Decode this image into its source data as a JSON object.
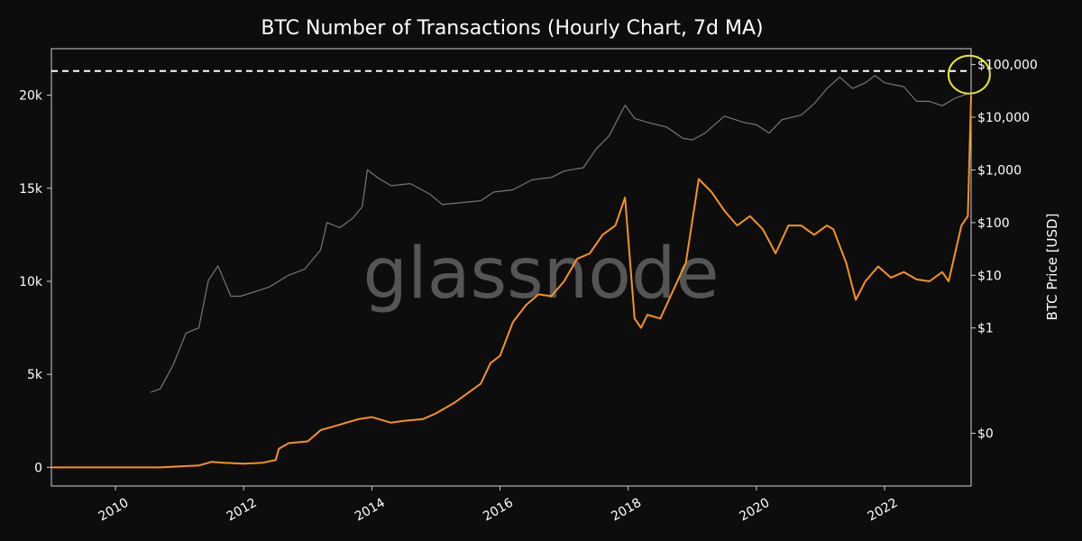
{
  "chart_data": {
    "type": "line",
    "title": "BTC Number of Transactions (Hourly Chart, 7d MA)",
    "xlabel": "",
    "ylabel": "",
    "y2label": "BTC Price [USD]",
    "watermark": "glassnode",
    "xlim": [
      2009.0,
      2023.35
    ],
    "ylim": [
      -1000,
      22500
    ],
    "y2lim_log": [
      0.001,
      200000
    ],
    "x_ticks": [
      "2010",
      "2012",
      "2014",
      "2016",
      "2018",
      "2020",
      "2022"
    ],
    "y_ticks": [
      "0",
      "5k",
      "10k",
      "15k",
      "20k"
    ],
    "y2_ticks": [
      "$0",
      "$1",
      "$10",
      "$100",
      "$1,000",
      "$10,000",
      "$100,000"
    ],
    "grid": false,
    "series": [
      {
        "axis": "left",
        "color": "#f7931a",
        "x": [
          2009.0,
          2010.7,
          2011.0,
          2011.3,
          2011.5,
          2011.7,
          2012.0,
          2012.3,
          2012.5,
          2012.55,
          2012.7,
          2013.0,
          2013.2,
          2013.5,
          2013.8,
          2014.0,
          2014.3,
          2014.5,
          2014.8,
          2015.0,
          2015.3,
          2015.5,
          2015.7,
          2015.85,
          2016.0,
          2016.2,
          2016.4,
          2016.6,
          2016.8,
          2017.0,
          2017.2,
          2017.4,
          2017.6,
          2017.8,
          2017.95,
          2018.1,
          2018.2,
          2018.3,
          2018.5,
          2018.7,
          2018.9,
          2019.1,
          2019.3,
          2019.5,
          2019.7,
          2019.9,
          2020.1,
          2020.3,
          2020.5,
          2020.7,
          2020.9,
          2021.1,
          2021.2,
          2021.4,
          2021.55,
          2021.7,
          2021.9,
          2022.1,
          2022.3,
          2022.5,
          2022.7,
          2022.9,
          2023.0,
          2023.1,
          2023.2,
          2023.3,
          2023.35
        ],
        "y": [
          0,
          0,
          50,
          100,
          300,
          250,
          200,
          250,
          400,
          1000,
          1300,
          1400,
          2000,
          2300,
          2600,
          2700,
          2400,
          2500,
          2600,
          2900,
          3500,
          4000,
          4500,
          5600,
          6000,
          7800,
          8700,
          9300,
          9200,
          10000,
          11200,
          11500,
          12500,
          13000,
          14500,
          8000,
          7500,
          8200,
          8000,
          9500,
          11000,
          15500,
          14800,
          13800,
          13000,
          13500,
          12800,
          11500,
          13000,
          13000,
          12500,
          13000,
          12800,
          11000,
          9000,
          10000,
          10800,
          10200,
          10500,
          10100,
          10000,
          10500,
          10000,
          11500,
          13000,
          13500,
          20000
        ]
      },
      {
        "axis": "right",
        "color": "#777777",
        "x": [
          2010.55,
          2010.7,
          2010.9,
          2011.1,
          2011.3,
          2011.45,
          2011.6,
          2011.8,
          2011.95,
          2012.2,
          2012.4,
          2012.7,
          2012.95,
          2013.2,
          2013.3,
          2013.5,
          2013.7,
          2013.85,
          2013.93,
          2014.1,
          2014.3,
          2014.6,
          2014.9,
          2015.1,
          2015.4,
          2015.7,
          2015.9,
          2016.2,
          2016.5,
          2016.8,
          2017.0,
          2017.3,
          2017.5,
          2017.7,
          2017.95,
          2018.1,
          2018.3,
          2018.6,
          2018.85,
          2019.0,
          2019.2,
          2019.5,
          2019.8,
          2020.0,
          2020.2,
          2020.4,
          2020.7,
          2020.9,
          2021.1,
          2021.3,
          2021.5,
          2021.7,
          2021.85,
          2022.0,
          2022.3,
          2022.5,
          2022.7,
          2022.9,
          2023.1,
          2023.3
        ],
        "y": [
          0.06,
          0.07,
          0.2,
          0.8,
          1,
          8,
          15,
          4,
          4,
          5,
          6,
          10,
          13,
          30,
          100,
          80,
          120,
          200,
          1000,
          700,
          500,
          550,
          350,
          220,
          240,
          260,
          380,
          420,
          650,
          720,
          950,
          1100,
          2500,
          4400,
          17000,
          9500,
          8000,
          6500,
          4000,
          3700,
          5000,
          10500,
          8000,
          7200,
          5000,
          9000,
          11000,
          18000,
          35000,
          58000,
          35000,
          45000,
          62000,
          45000,
          38000,
          20000,
          20000,
          16500,
          23000,
          28000
        ]
      }
    ],
    "annotations": [
      {
        "type": "hline",
        "y": 21300,
        "style": "dashed",
        "color": "#ffffff"
      },
      {
        "type": "circle",
        "x": 2023.32,
        "y": 21300,
        "color": "#e6e62e"
      }
    ]
  }
}
